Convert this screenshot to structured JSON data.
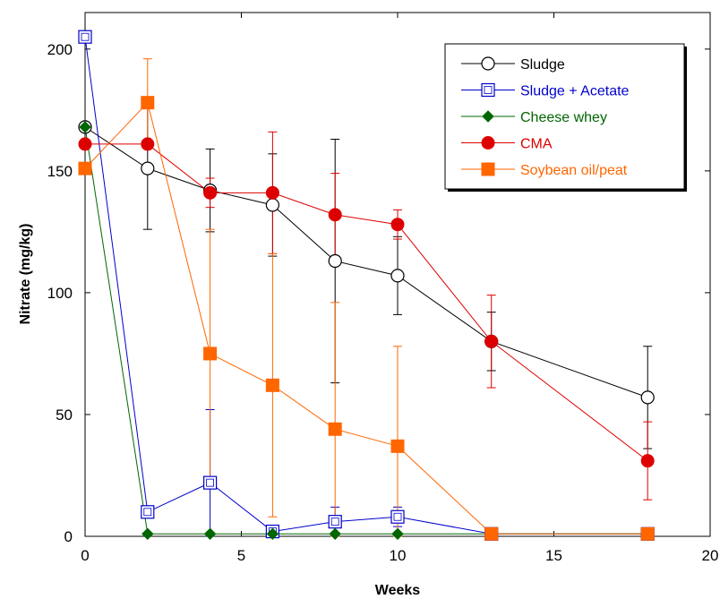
{
  "chart_data": {
    "type": "line",
    "xlabel": "Weeks",
    "ylabel": "Nitrate (mg/kg)",
    "xlim": [
      0,
      20
    ],
    "ylim": [
      0,
      215
    ],
    "xticks": [
      0,
      5,
      10,
      15,
      20
    ],
    "yticks": [
      0,
      50,
      100,
      150,
      200
    ],
    "grid": false,
    "legend_position": "top-right",
    "x": [
      0,
      2,
      4,
      6,
      8,
      10,
      13,
      18
    ],
    "series": [
      {
        "name": "Sludge",
        "color": "#000000",
        "marker": "circle-open",
        "values": [
          168,
          151,
          142,
          136,
          113,
          107,
          80,
          57
        ],
        "errors": [
          null,
          25,
          17,
          21,
          50,
          16,
          12,
          21
        ]
      },
      {
        "name": "Sludge + Acetate",
        "color": "#0000cc",
        "marker": "square-open",
        "values": [
          205,
          10,
          22,
          2,
          6,
          8,
          1,
          1
        ],
        "errors": [
          null,
          2,
          30,
          2,
          6,
          4,
          1,
          1
        ]
      },
      {
        "name": "Cheese whey",
        "color": "#006600",
        "marker": "diamond-filled",
        "values": [
          168,
          1,
          1,
          1,
          1,
          1,
          1,
          1
        ],
        "errors": [
          null,
          null,
          null,
          null,
          null,
          null,
          null,
          null
        ]
      },
      {
        "name": "CMA",
        "color": "#dd0000",
        "marker": "circle-filled",
        "values": [
          161,
          161,
          141,
          141,
          132,
          128,
          80,
          31
        ],
        "errors": [
          null,
          null,
          6,
          25,
          17,
          6,
          19,
          16
        ]
      },
      {
        "name": "Soybean oil/peat",
        "color": "#ff6600",
        "marker": "square-filled",
        "values": [
          151,
          178,
          75,
          62,
          44,
          37,
          1,
          1
        ],
        "errors": [
          null,
          18,
          51,
          54,
          52,
          41,
          1,
          1
        ]
      }
    ]
  }
}
